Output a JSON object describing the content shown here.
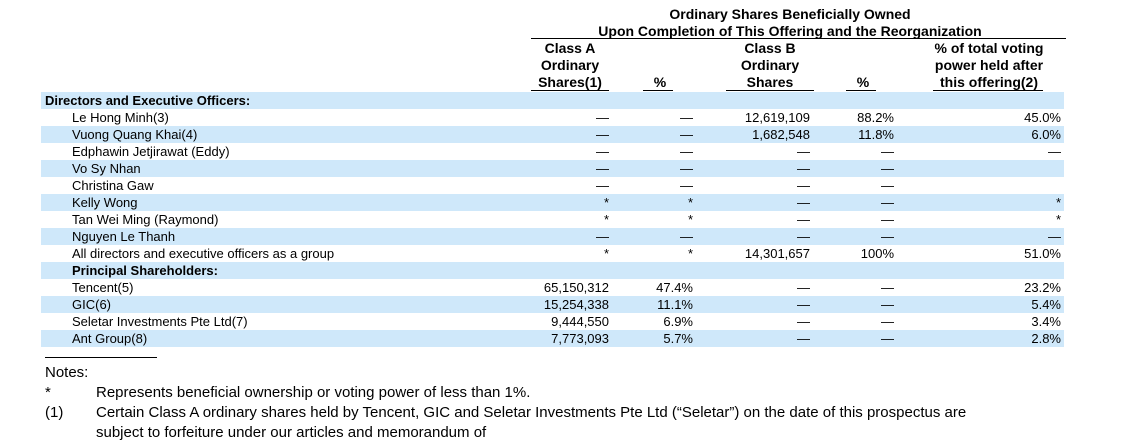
{
  "header": {
    "group_line1": "Ordinary Shares Beneficially Owned",
    "group_line2": "Upon Completion of This Offering and the Reorganization",
    "colA": [
      "Class A",
      "Ordinary",
      "Shares(1)"
    ],
    "colA_pct": "%",
    "colB": [
      "Class B",
      "Ordinary",
      "Shares"
    ],
    "colB_pct": "%",
    "colV": [
      "% of total voting",
      "power held after",
      "this offering(2)"
    ]
  },
  "section1": "Directors and Executive Officers:",
  "section2": "Principal Shareholders:",
  "rows": [
    {
      "name": "Le Hong Minh(3)",
      "a": "—",
      "a_pct": "—",
      "b": "12,619,109",
      "b_pct": "88.2%",
      "v": "45.0%"
    },
    {
      "name": "Vuong Quang Khai(4)",
      "a": "—",
      "a_pct": "—",
      "b": "1,682,548",
      "b_pct": "11.8%",
      "v": "6.0%"
    },
    {
      "name": "Edphawin Jetjirawat (Eddy)",
      "a": "—",
      "a_pct": "—",
      "b": "—",
      "b_pct": "—",
      "v": "—"
    },
    {
      "name": "Vo Sy Nhan",
      "a": "—",
      "a_pct": "—",
      "b": "—",
      "b_pct": "—",
      "v": ""
    },
    {
      "name": "Christina Gaw",
      "a": "—",
      "a_pct": "—",
      "b": "—",
      "b_pct": "—",
      "v": ""
    },
    {
      "name": "Kelly Wong",
      "a": "*",
      "a_pct": "*",
      "b": "—",
      "b_pct": "—",
      "v": "*"
    },
    {
      "name": "Tan Wei Ming (Raymond)",
      "a": "*",
      "a_pct": "*",
      "b": "—",
      "b_pct": "—",
      "v": "*"
    },
    {
      "name": "Nguyen Le Thanh",
      "a": "—",
      "a_pct": "—",
      "b": "—",
      "b_pct": "—",
      "v": "—"
    },
    {
      "name": "All directors and executive officers as a group",
      "a": "*",
      "a_pct": "*",
      "b": "14,301,657",
      "b_pct": "100%",
      "v": "51.0%"
    }
  ],
  "rows2": [
    {
      "name": "Tencent(5)",
      "a": "65,150,312",
      "a_pct": "47.4%",
      "b": "—",
      "b_pct": "—",
      "v": "23.2%"
    },
    {
      "name": "GIC(6)",
      "a": "15,254,338",
      "a_pct": "11.1%",
      "b": "—",
      "b_pct": "—",
      "v": "5.4%"
    },
    {
      "name": "Seletar Investments Pte Ltd(7)",
      "a": "9,444,550",
      "a_pct": "6.9%",
      "b": "—",
      "b_pct": "—",
      "v": "3.4%"
    },
    {
      "name": "Ant Group(8)",
      "a": "7,773,093",
      "a_pct": "5.7%",
      "b": "—",
      "b_pct": "—",
      "v": "2.8%"
    }
  ],
  "notes": {
    "title": "Notes:",
    "items": [
      {
        "mark": "*",
        "text": "Represents beneficial ownership or voting power of less than 1%."
      },
      {
        "mark": "(1)",
        "text": "Certain Class A ordinary shares held by Tencent, GIC and Seletar Investments Pte Ltd (“Seletar”) on the date of this prospectus are",
        "text2": "subject to forfeiture under our articles and memorandum of"
      }
    ]
  }
}
